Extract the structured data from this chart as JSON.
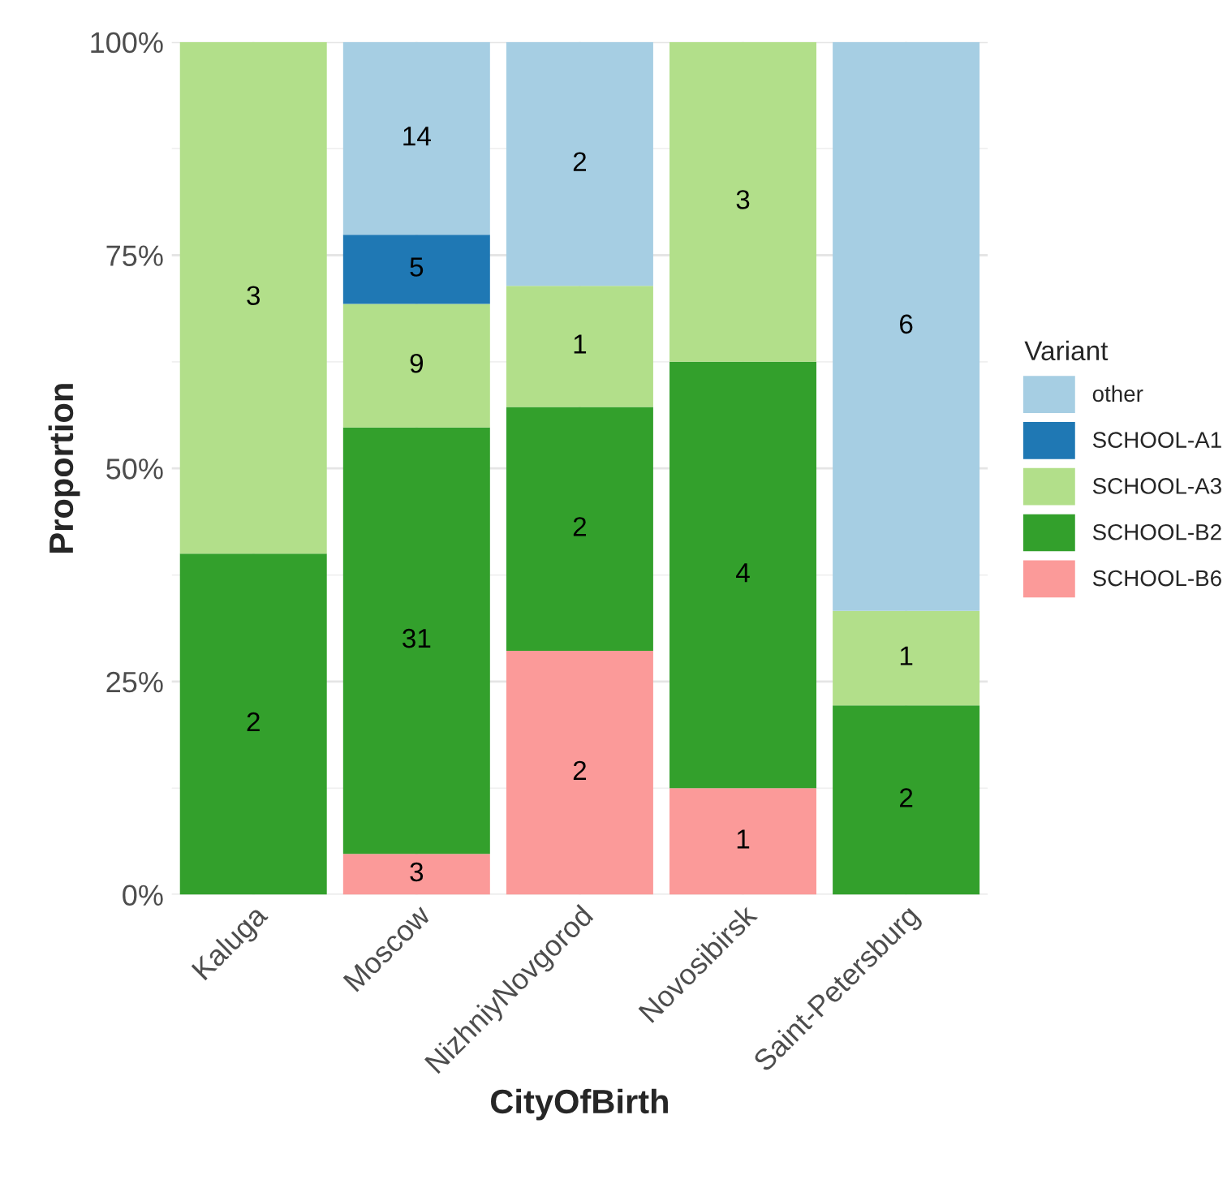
{
  "chart_data": {
    "type": "bar",
    "stacked": true,
    "xlabel": "CityOfBirth",
    "ylabel": "Proportion",
    "legend_title": "Variant",
    "legend": "right",
    "grid": true,
    "categories": [
      "Kaluga",
      "Moscow",
      "NizhniyNovgorod",
      "Novosibirsk",
      "Saint-Petersburg"
    ],
    "ylim": [
      0,
      100
    ],
    "yticks": [
      {
        "value": 0,
        "label": "0%"
      },
      {
        "value": 25,
        "label": "25%"
      },
      {
        "value": 50,
        "label": "50%"
      },
      {
        "value": 75,
        "label": "75%"
      },
      {
        "value": 100,
        "label": "100%"
      }
    ],
    "series": [
      {
        "name": "SCHOOL-B6",
        "color": "#fb9a99",
        "values": [
          null,
          4.8,
          28.6,
          12.5,
          null
        ]
      },
      {
        "name": "SCHOOL-B2",
        "color": "#33a02c",
        "values": [
          40,
          50,
          28.6,
          50,
          22.2
        ]
      },
      {
        "name": "SCHOOL-A3",
        "color": "#b2df8a",
        "values": [
          60,
          14.5,
          14.2,
          37.5,
          11.1
        ]
      },
      {
        "name": "SCHOOL-A1",
        "color": "#1f78b4",
        "values": [
          null,
          8.1,
          null,
          null,
          null
        ]
      },
      {
        "name": "other",
        "color": "#a6cee3",
        "values": [
          null,
          22.6,
          28.6,
          null,
          66.7
        ]
      }
    ],
    "annotations": [
      "3",
      "2",
      "1",
      "2",
      "31",
      "2",
      "4",
      "2",
      "3",
      "9",
      "1",
      "3",
      "1",
      "5",
      "14",
      "2",
      "6"
    ]
  }
}
